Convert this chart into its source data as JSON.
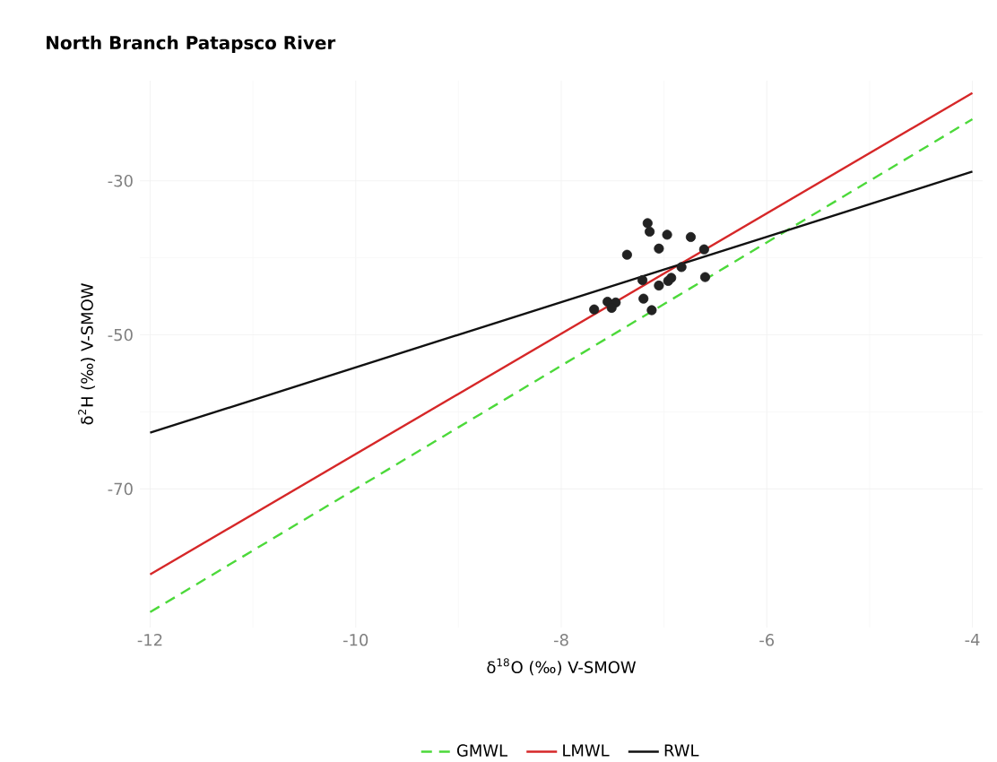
{
  "chart_data": {
    "type": "scatter",
    "title": "North Branch Patapsco River",
    "xlabel": "δ$^{18}$O (‰) V-SMOW",
    "ylabel": "δ$^{2}$H (‰) V-SMOW",
    "xlim": [
      -12.1,
      -3.9
    ],
    "ylim": [
      -88,
      -17
    ],
    "xticks": [
      -12,
      -10,
      -8,
      -6,
      -4
    ],
    "yticks": [
      -30,
      -50,
      -70
    ],
    "grid": true,
    "legend": "bottom",
    "series": [
      {
        "type": "line",
        "name": "GMWL",
        "color": "#4cd93a",
        "line_style": "dashed",
        "marker": "none",
        "x": [
          -12,
          -4
        ],
        "values": [
          -86,
          -22
        ]
      },
      {
        "type": "line",
        "name": "LMWL",
        "color": "#d62728",
        "line_style": "solid",
        "marker": "none",
        "x": [
          -12,
          -4
        ],
        "values": [
          -81.1,
          -18.6
        ]
      },
      {
        "type": "line",
        "name": "RWL",
        "color": "#111111",
        "line_style": "solid",
        "marker": "none",
        "x": [
          -12,
          -4
        ],
        "values": [
          -62.7,
          -28.8
        ]
      },
      {
        "color": "#222222",
        "marker": "circle",
        "x": [
          -7.16,
          -7.14,
          -6.97,
          -6.74,
          -7.05,
          -7.36,
          -6.61,
          -6.83,
          -7.21,
          -7.05,
          -6.96,
          -6.93,
          -6.6,
          -7.2,
          -7.55,
          -7.47,
          -7.51,
          -7.68,
          -7.12
        ],
        "values": [
          -35.5,
          -36.6,
          -37.0,
          -37.3,
          -38.8,
          -39.6,
          -38.9,
          -41.2,
          -42.9,
          -43.6,
          -43.0,
          -42.6,
          -42.5,
          -45.3,
          -45.7,
          -45.8,
          -46.5,
          -46.7,
          -46.8
        ]
      }
    ]
  }
}
